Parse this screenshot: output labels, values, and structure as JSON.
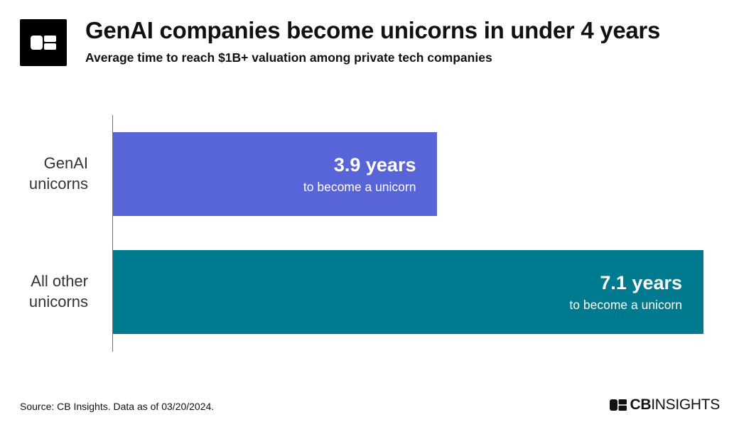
{
  "header": {
    "title": "GenAI companies become unicorns in under 4 years",
    "subtitle": "Average time to reach $1B+ valuation among private tech companies",
    "logo_icon": "cb-insights-logo-icon"
  },
  "chart_data": {
    "type": "bar",
    "orientation": "horizontal",
    "title": "GenAI companies become unicorns in under 4 years",
    "subtitle": "Average time to reach $1B+ valuation among private tech companies",
    "categories": [
      "GenAI\nunicorns",
      "All other\nunicorns"
    ],
    "values": [
      3.9,
      7.1
    ],
    "unit": "years",
    "value_labels": [
      "3.9 years",
      "7.1 years"
    ],
    "value_sublabels": [
      "to become a unicorn",
      "to become a unicorn"
    ],
    "colors": [
      "#5865d8",
      "#007a8e"
    ],
    "xlim": [
      0,
      7.1
    ],
    "grid": false,
    "legend": "none"
  },
  "footer": {
    "source": "Source: CB Insights. Data as of 03/20/2024.",
    "brand_bold": "CB",
    "brand_rest": "INSIGHTS"
  }
}
